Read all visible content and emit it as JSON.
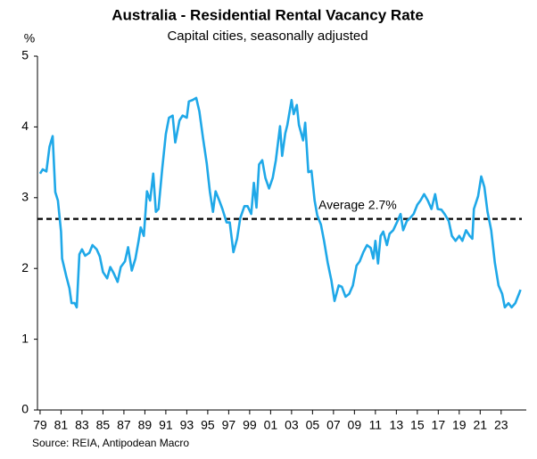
{
  "chart_data": {
    "type": "line",
    "title": "Australia - Residential Rental Vacancy Rate",
    "subtitle": "Capital cities, seasonally adjusted",
    "y_unit": "%",
    "source": "Source: REIA, Antipodean Macro",
    "color": "#1fa8e8",
    "x": [
      1979.0,
      1979.25,
      1979.6,
      1979.9,
      1980.2,
      1980.45,
      1980.7,
      1981.0,
      1981.1,
      1981.5,
      1981.8,
      1982.0,
      1982.3,
      1982.5,
      1982.75,
      1983.0,
      1983.3,
      1983.7,
      1984.0,
      1984.4,
      1984.7,
      1985.0,
      1985.4,
      1985.7,
      1986.0,
      1986.4,
      1986.7,
      1987.1,
      1987.4,
      1987.75,
      1988.1,
      1988.4,
      1988.6,
      1988.9,
      1989.2,
      1989.5,
      1989.8,
      1990.05,
      1990.3,
      1990.65,
      1991.0,
      1991.3,
      1991.65,
      1991.9,
      1992.3,
      1992.6,
      1993.0,
      1993.2,
      1993.55,
      1993.9,
      1994.2,
      1994.55,
      1994.9,
      1995.2,
      1995.5,
      1995.75,
      1996.1,
      1996.4,
      1996.8,
      1997.1,
      1997.45,
      1997.8,
      1998.1,
      1998.5,
      1998.8,
      1999.15,
      1999.4,
      1999.65,
      1999.9,
      2000.2,
      2000.5,
      2000.85,
      2001.2,
      2001.5,
      2001.9,
      2002.1,
      2002.4,
      2002.6,
      2003.0,
      2003.2,
      2003.5,
      2003.7,
      2004.1,
      2004.3,
      2004.6,
      2004.9,
      2005.2,
      2005.45,
      2005.8,
      2006.1,
      2006.45,
      2006.8,
      2007.1,
      2007.5,
      2007.8,
      2008.15,
      2008.5,
      2008.85,
      2009.2,
      2009.5,
      2009.85,
      2010.2,
      2010.55,
      2010.8,
      2011.0,
      2011.25,
      2011.5,
      2011.75,
      2012.1,
      2012.35,
      2012.7,
      2013.05,
      2013.4,
      2013.65,
      2014.0,
      2014.3,
      2014.65,
      2015.0,
      2015.3,
      2015.65,
      2016.0,
      2016.35,
      2016.7,
      2016.95,
      2017.3,
      2017.6,
      2018.0,
      2018.3,
      2018.65,
      2019.0,
      2019.3,
      2019.65,
      2020.0,
      2020.25,
      2020.4,
      2020.8,
      2021.1,
      2021.4,
      2021.7,
      2022.05,
      2022.4,
      2022.75,
      2023.1,
      2023.35,
      2023.7,
      2024.0,
      2024.35,
      2024.7,
      2024.85
    ],
    "values": [
      3.34,
      3.4,
      3.37,
      3.72,
      3.87,
      3.08,
      2.96,
      2.52,
      2.14,
      1.89,
      1.72,
      1.51,
      1.51,
      1.45,
      2.2,
      2.27,
      2.18,
      2.22,
      2.33,
      2.27,
      2.17,
      1.95,
      1.86,
      2.02,
      1.94,
      1.81,
      2.02,
      2.1,
      2.3,
      1.97,
      2.14,
      2.39,
      2.58,
      2.46,
      3.09,
      2.96,
      3.34,
      2.8,
      2.84,
      3.4,
      3.9,
      4.13,
      4.16,
      3.78,
      4.09,
      4.16,
      4.13,
      4.36,
      4.38,
      4.41,
      4.22,
      3.84,
      3.49,
      3.09,
      2.8,
      3.09,
      2.96,
      2.84,
      2.65,
      2.65,
      2.23,
      2.42,
      2.71,
      2.88,
      2.88,
      2.77,
      3.21,
      2.86,
      3.47,
      3.53,
      3.28,
      3.13,
      3.28,
      3.53,
      4.01,
      3.59,
      3.91,
      4.03,
      4.38,
      4.18,
      4.31,
      4.03,
      3.81,
      4.06,
      3.36,
      3.38,
      2.96,
      2.75,
      2.62,
      2.39,
      2.08,
      1.83,
      1.54,
      1.76,
      1.74,
      1.6,
      1.64,
      1.76,
      2.04,
      2.1,
      2.23,
      2.33,
      2.29,
      2.14,
      2.39,
      2.07,
      2.46,
      2.52,
      2.33,
      2.49,
      2.54,
      2.65,
      2.77,
      2.54,
      2.67,
      2.71,
      2.77,
      2.9,
      2.96,
      3.05,
      2.96,
      2.84,
      3.05,
      2.84,
      2.83,
      2.77,
      2.67,
      2.46,
      2.39,
      2.46,
      2.39,
      2.54,
      2.46,
      2.42,
      2.84,
      3.02,
      3.3,
      3.15,
      2.8,
      2.54,
      2.08,
      1.76,
      1.64,
      1.45,
      1.51,
      1.45,
      1.51,
      1.64,
      1.7
    ],
    "reference_line": {
      "value": 2.7,
      "label": "Average 2.7%"
    },
    "xlim": [
      1978.75,
      2025.4
    ],
    "xticks": [
      {
        "value": 1979,
        "label": "79"
      },
      {
        "value": 1981,
        "label": "81"
      },
      {
        "value": 1983,
        "label": "83"
      },
      {
        "value": 1985,
        "label": "85"
      },
      {
        "value": 1987,
        "label": "87"
      },
      {
        "value": 1989,
        "label": "89"
      },
      {
        "value": 1991,
        "label": "91"
      },
      {
        "value": 1993,
        "label": "93"
      },
      {
        "value": 1995,
        "label": "95"
      },
      {
        "value": 1997,
        "label": "97"
      },
      {
        "value": 1999,
        "label": "99"
      },
      {
        "value": 2001,
        "label": "01"
      },
      {
        "value": 2003,
        "label": "03"
      },
      {
        "value": 2005,
        "label": "05"
      },
      {
        "value": 2007,
        "label": "07"
      },
      {
        "value": 2009,
        "label": "09"
      },
      {
        "value": 2011,
        "label": "11"
      },
      {
        "value": 2013,
        "label": "13"
      },
      {
        "value": 2015,
        "label": "15"
      },
      {
        "value": 2017,
        "label": "17"
      },
      {
        "value": 2019,
        "label": "19"
      },
      {
        "value": 2021,
        "label": "21"
      },
      {
        "value": 2023,
        "label": "23"
      }
    ],
    "ylim": [
      0,
      5
    ],
    "yticks": [
      0,
      1,
      2,
      3,
      4,
      5
    ],
    "grid": false
  }
}
